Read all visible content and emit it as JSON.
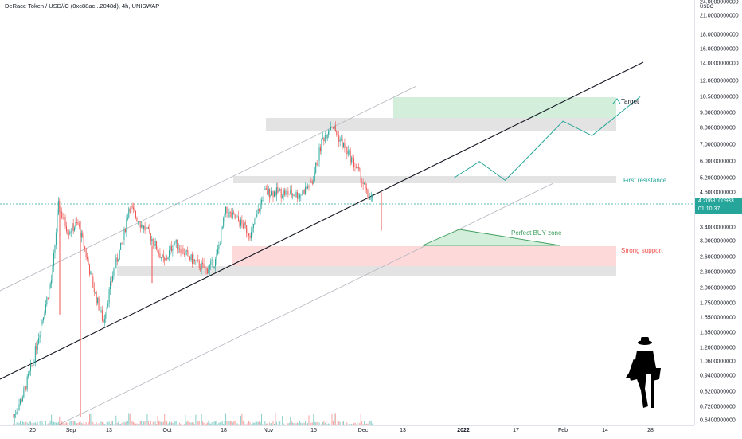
{
  "header": {
    "title": "DeRace Token / USD//C (0xc88ac...2048d), 4h, UNISWAP"
  },
  "y_axis": {
    "unit_label": "USDC",
    "ticks": [
      "24.0000000000",
      "21.0000000000",
      "18.0000000000",
      "16.0000000000",
      "14.0000000000",
      "12.0000000000",
      "10.5000000000",
      "9.0000000000",
      "8.0000000000",
      "7.0000000000",
      "6.0000000000",
      "5.2000000000",
      "4.6000000000",
      "3.4000000000",
      "3.0000000000",
      "2.6000000000",
      "2.3000000000",
      "2.0000000000",
      "1.7500000000",
      "1.5500000000",
      "1.3500000000",
      "1.2000000000",
      "1.0600000000",
      "0.9400000000",
      "0.8200000000",
      "0.7200000000",
      "0.6400000000"
    ],
    "current_price": "4.2068100933",
    "countdown": "01:10:37",
    "scale": "log"
  },
  "x_axis": {
    "ticks": [
      {
        "label": "20",
        "bold": false
      },
      {
        "label": "Sep",
        "bold": false
      },
      {
        "label": "13",
        "bold": false
      },
      {
        "label": "Oct",
        "bold": false
      },
      {
        "label": "18",
        "bold": false
      },
      {
        "label": "Nov",
        "bold": false
      },
      {
        "label": "15",
        "bold": false
      },
      {
        "label": "Dec",
        "bold": false
      },
      {
        "label": "13",
        "bold": false
      },
      {
        "label": "2022",
        "bold": true
      },
      {
        "label": "17",
        "bold": false
      },
      {
        "label": "Feb",
        "bold": false
      },
      {
        "label": "14",
        "bold": false
      },
      {
        "label": "28",
        "bold": false
      }
    ]
  },
  "annotations": {
    "target": "Target",
    "first_resistance": "First resistance",
    "perfect_buy": "Perfect BUY zone",
    "strong_support": "Strong support"
  },
  "colors": {
    "up": "#26a69a",
    "down": "#ef5350",
    "current_price": "#26a69a",
    "target_zone": "#d3eedb",
    "support_zone": "#fdd9d9",
    "grey_zone": "#e3e3e3",
    "resistance_text": "#26a69a",
    "support_text": "#ef5350",
    "buy_zone_text": "#3d9d5c"
  },
  "chart_data": {
    "type": "candlestick",
    "title": "DeRace Token / USD//C (0xc88ac...2048d), 4h, UNISWAP",
    "price_path": [
      {
        "date": "2021-08-14",
        "price": 0.66
      },
      {
        "date": "2021-08-17",
        "price": 0.8
      },
      {
        "date": "2021-08-20",
        "price": 1.05
      },
      {
        "date": "2021-08-23",
        "price": 1.55
      },
      {
        "date": "2021-08-26",
        "price": 2.2
      },
      {
        "date": "2021-08-28",
        "price": 4.1
      },
      {
        "date": "2021-08-31",
        "price": 3.3
      },
      {
        "date": "2021-09-03",
        "price": 3.5
      },
      {
        "date": "2021-09-05",
        "price": 2.9
      },
      {
        "date": "2021-09-08",
        "price": 2.0
      },
      {
        "date": "2021-09-11",
        "price": 1.5
      },
      {
        "date": "2021-09-14",
        "price": 2.3
      },
      {
        "date": "2021-09-17",
        "price": 3.0
      },
      {
        "date": "2021-09-19",
        "price": 4.1
      },
      {
        "date": "2021-09-22",
        "price": 3.6
      },
      {
        "date": "2021-09-26",
        "price": 3.1
      },
      {
        "date": "2021-09-30",
        "price": 2.5
      },
      {
        "date": "2021-10-03",
        "price": 3.0
      },
      {
        "date": "2021-10-08",
        "price": 2.6
      },
      {
        "date": "2021-10-13",
        "price": 2.35
      },
      {
        "date": "2021-10-16",
        "price": 2.55
      },
      {
        "date": "2021-10-19",
        "price": 3.9
      },
      {
        "date": "2021-10-23",
        "price": 3.6
      },
      {
        "date": "2021-10-27",
        "price": 3.2
      },
      {
        "date": "2021-10-31",
        "price": 4.6
      },
      {
        "date": "2021-11-05",
        "price": 4.6
      },
      {
        "date": "2021-11-11",
        "price": 4.5
      },
      {
        "date": "2021-11-15",
        "price": 5.0
      },
      {
        "date": "2021-11-18",
        "price": 7.2
      },
      {
        "date": "2021-11-21",
        "price": 8.3
      },
      {
        "date": "2021-11-24",
        "price": 7.1
      },
      {
        "date": "2021-11-27",
        "price": 6.2
      },
      {
        "date": "2021-11-30",
        "price": 5.3
      },
      {
        "date": "2021-12-02",
        "price": 4.5
      },
      {
        "date": "2021-12-04",
        "price": 4.21
      }
    ],
    "projection_path": [
      {
        "date": "2021-12-29",
        "price": 5.2
      },
      {
        "date": "2022-01-06",
        "price": 6.0
      },
      {
        "date": "2022-01-14",
        "price": 5.1
      },
      {
        "date": "2022-02-01",
        "price": 8.5
      },
      {
        "date": "2022-02-10",
        "price": 7.5
      },
      {
        "date": "2022-02-25",
        "price": 10.5
      }
    ],
    "zones": [
      {
        "label": "Target",
        "kind": "target"
      },
      {
        "label": "First resistance",
        "kind": "resistance"
      },
      {
        "label": "Perfect BUY zone",
        "kind": "buy"
      },
      {
        "label": "Strong support",
        "kind": "support"
      }
    ],
    "volume": "shown"
  }
}
